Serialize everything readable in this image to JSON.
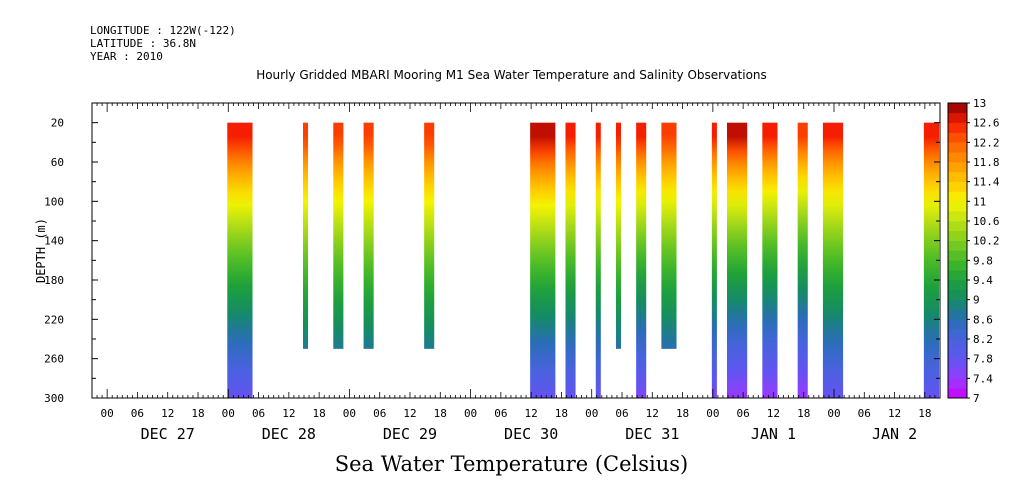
{
  "header": {
    "longitude": "LONGITUDE : 122W(-122)",
    "latitude": "LATITUDE : 36.8N",
    "year": "YEAR : 2010",
    "title": "Hourly Gridded MBARI Mooring M1 Sea Water Temperature and Salinity Observations"
  },
  "footer": {
    "variable_label": "Sea Water Temperature (Celsius)"
  },
  "chart_data": {
    "type": "heatmap",
    "title": "Hourly Gridded MBARI Mooring M1 Sea Water Temperature and Salinity Observations",
    "xlabel": "",
    "ylabel": "DEPTH (m)",
    "y_reversed": true,
    "ylim": [
      300,
      0
    ],
    "yticks": [
      20,
      60,
      100,
      140,
      180,
      220,
      260,
      300
    ],
    "x_hour_ticks": [
      "00",
      "06",
      "12",
      "18",
      "00",
      "06",
      "12",
      "18",
      "00",
      "06",
      "12",
      "18",
      "00",
      "06",
      "12",
      "18",
      "00",
      "06",
      "12",
      "18",
      "00",
      "06",
      "12",
      "18",
      "00",
      "06",
      "12",
      "18"
    ],
    "x_day_labels": [
      "DEC 27",
      "DEC 28",
      "DEC 29",
      "DEC 30",
      "DEC 31",
      "JAN  1",
      "JAN  2"
    ],
    "x_range_hours_from_dec27_00": [
      -3,
      165
    ],
    "colorbar": {
      "min": 7,
      "max": 13,
      "step": 0.2,
      "labels": [
        "13",
        "12.6",
        "12.2",
        "11.8",
        "11.4",
        "11",
        "10.6",
        "10.2",
        "9.8",
        "9.4",
        "9",
        "8.6",
        "8.2",
        "7.8",
        "7.4",
        "7"
      ]
    },
    "profiles": [
      {
        "start": "DEC 28 00",
        "end": "DEC 28 04",
        "max_depth": 300,
        "surface_temp": 12.6,
        "deep_temp": 7.6,
        "thermocline_depth": 120
      },
      {
        "start": "DEC 28 15",
        "end": "DEC 28 15",
        "max_depth": 250,
        "surface_temp": 12.4,
        "deep_temp": 8.0,
        "thermocline_depth": 110
      },
      {
        "start": "DEC 28 21",
        "end": "DEC 28 22",
        "max_depth": 250,
        "surface_temp": 12.4,
        "deep_temp": 8.0,
        "thermocline_depth": 110
      },
      {
        "start": "DEC 29 03",
        "end": "DEC 29 04",
        "max_depth": 250,
        "surface_temp": 12.4,
        "deep_temp": 8.0,
        "thermocline_depth": 110
      },
      {
        "start": "DEC 29 15",
        "end": "DEC 29 16",
        "max_depth": 250,
        "surface_temp": 12.4,
        "deep_temp": 8.0,
        "thermocline_depth": 120
      },
      {
        "start": "DEC 30 12",
        "end": "DEC 30 16",
        "max_depth": 300,
        "surface_temp": 12.8,
        "deep_temp": 7.6,
        "thermocline_depth": 100
      },
      {
        "start": "DEC 30 19",
        "end": "DEC 30 20",
        "max_depth": 300,
        "surface_temp": 12.6,
        "deep_temp": 7.6,
        "thermocline_depth": 90
      },
      {
        "start": "DEC 31 01",
        "end": "DEC 31 01",
        "max_depth": 300,
        "surface_temp": 12.6,
        "deep_temp": 7.6,
        "thermocline_depth": 90
      },
      {
        "start": "DEC 31 05",
        "end": "DEC 31 05",
        "max_depth": 250,
        "surface_temp": 12.6,
        "deep_temp": 7.8,
        "thermocline_depth": 90
      },
      {
        "start": "DEC 31 09",
        "end": "DEC 31 10",
        "max_depth": 300,
        "surface_temp": 12.6,
        "deep_temp": 7.4,
        "thermocline_depth": 90
      },
      {
        "start": "DEC 31 14",
        "end": "DEC 31 16",
        "max_depth": 250,
        "surface_temp": 12.4,
        "deep_temp": 7.8,
        "thermocline_depth": 100
      },
      {
        "start": "JAN 1 00",
        "end": "JAN 1 00",
        "max_depth": 300,
        "surface_temp": 12.6,
        "deep_temp": 7.4,
        "thermocline_depth": 80
      },
      {
        "start": "JAN 1 03",
        "end": "JAN 1 06",
        "max_depth": 300,
        "surface_temp": 12.8,
        "deep_temp": 7.2,
        "thermocline_depth": 80
      },
      {
        "start": "JAN 1 10",
        "end": "JAN 1 12",
        "max_depth": 300,
        "surface_temp": 12.6,
        "deep_temp": 7.2,
        "thermocline_depth": 90
      },
      {
        "start": "JAN 1 17",
        "end": "JAN 1 18",
        "max_depth": 300,
        "surface_temp": 12.4,
        "deep_temp": 7.2,
        "thermocline_depth": 90
      },
      {
        "start": "JAN 1 22",
        "end": "JAN 2 01",
        "max_depth": 300,
        "surface_temp": 12.6,
        "deep_temp": 7.6,
        "thermocline_depth": 80
      },
      {
        "start": "JAN 2 18",
        "end": "JAN 2 20",
        "max_depth": 300,
        "surface_temp": 12.6,
        "deep_temp": 7.6,
        "thermocline_depth": 100
      }
    ]
  }
}
